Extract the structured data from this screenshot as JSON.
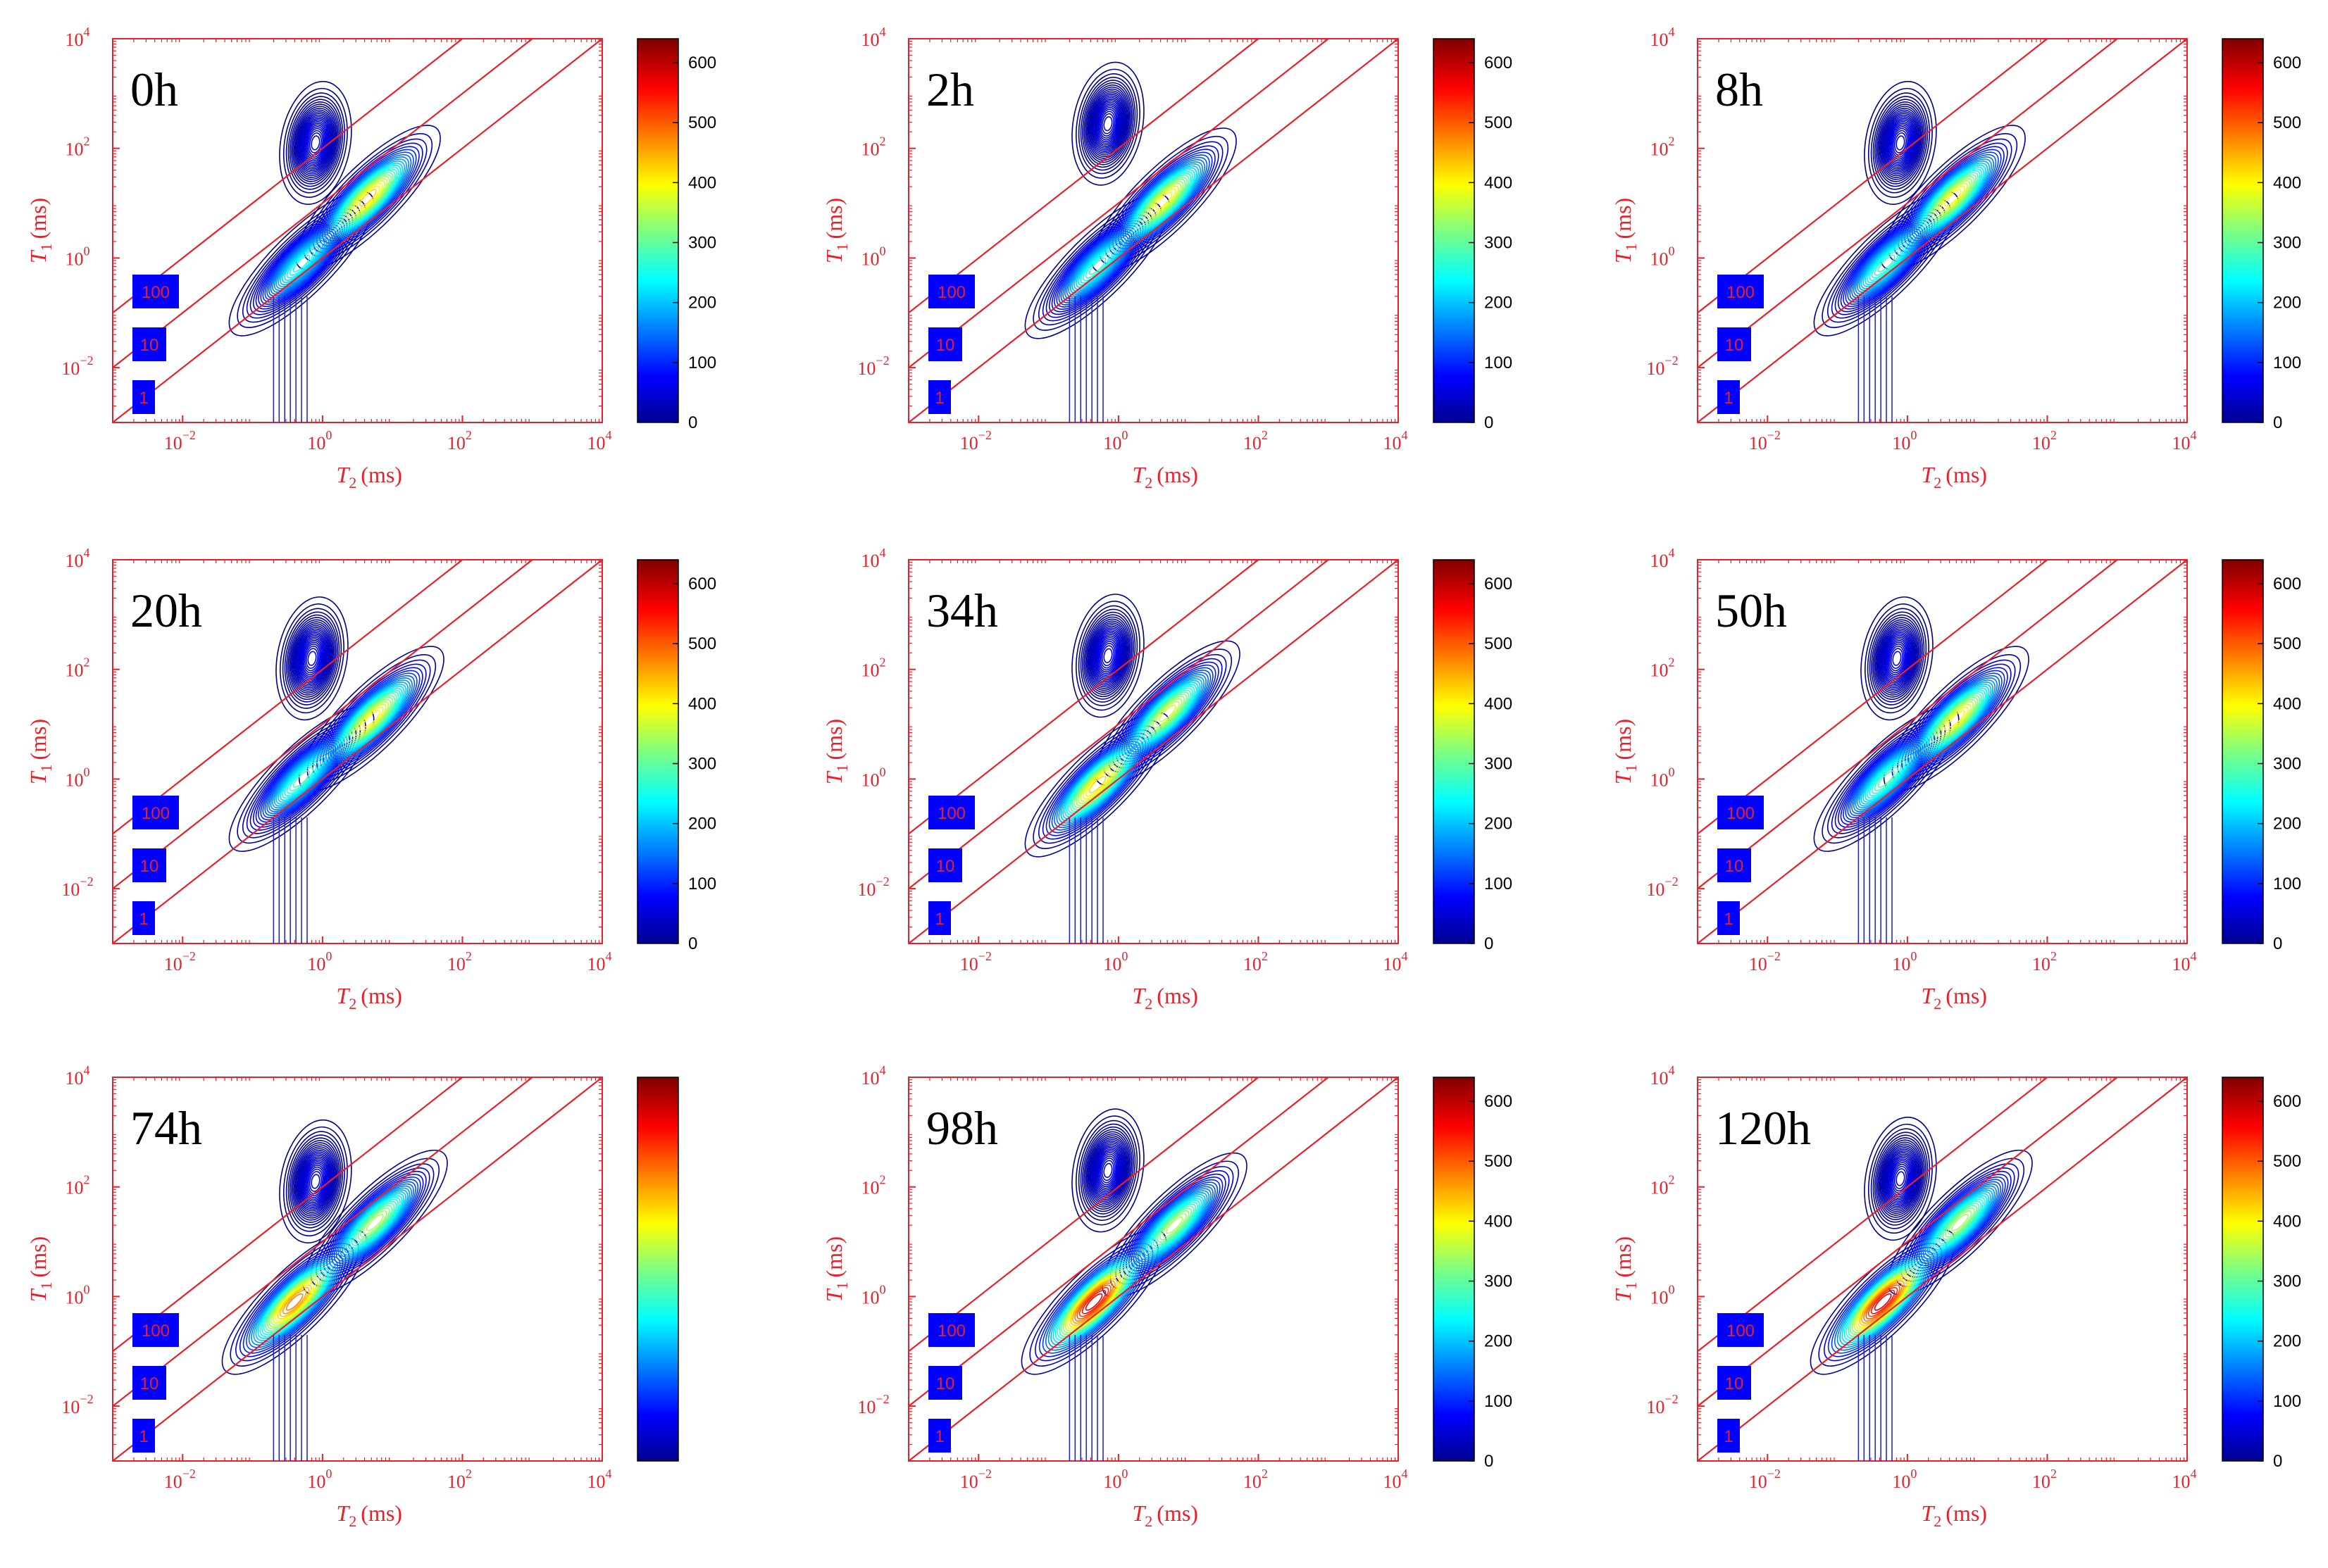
{
  "chart_data": {
    "type": "contour",
    "description_axes": {
      "xlabel": "T",
      "xlabel_sub": "2",
      "xlabel_unit": "(ms)",
      "ylabel": "T",
      "ylabel_sub": "1",
      "ylabel_unit": "(ms)",
      "xlim_log10": [
        -3,
        4
      ],
      "ylim_log10": [
        -3,
        4
      ],
      "x_ticks": [
        {
          "base": "10",
          "exp": "−2",
          "v": -2
        },
        {
          "base": "10",
          "exp": "0",
          "v": 0
        },
        {
          "base": "10",
          "exp": "2",
          "v": 2
        },
        {
          "base": "10",
          "exp": "4",
          "v": 4
        }
      ],
      "y_ticks": [
        {
          "base": "10",
          "exp": "−2",
          "v": -2
        },
        {
          "base": "10",
          "exp": "0",
          "v": 0
        },
        {
          "base": "10",
          "exp": "2",
          "v": 2
        },
        {
          "base": "10",
          "exp": "4",
          "v": 4
        }
      ],
      "ratio_lines": [
        {
          "label": "100",
          "ratio": 100
        },
        {
          "label": "10",
          "ratio": 10
        },
        {
          "label": "1",
          "ratio": 1
        }
      ],
      "colorbar_range": [
        0,
        640
      ],
      "colorbar_ticks": [
        "0",
        "100",
        "200",
        "300",
        "400",
        "500",
        "600"
      ]
    },
    "colors": {
      "axis": "#e8202a",
      "ratio_box": "#0000ff",
      "contour_low": "#2020c0"
    },
    "panels": [
      {
        "label": "0h",
        "peaks": [
          {
            "t2": -0.3,
            "t1": -0.1,
            "amp": 260
          },
          {
            "t2": 0.65,
            "t1": 1.1,
            "amp": 440
          },
          {
            "t2": -0.1,
            "t1": 2.1,
            "amp": 80
          }
        ],
        "show_cb_ticks": true
      },
      {
        "label": "2h",
        "peaks": [
          {
            "t2": -0.3,
            "t1": -0.15,
            "amp": 280
          },
          {
            "t2": 0.65,
            "t1": 1.05,
            "amp": 420
          },
          {
            "t2": -0.15,
            "t1": 2.45,
            "amp": 70
          }
        ],
        "show_cb_ticks": true
      },
      {
        "label": "8h",
        "peaks": [
          {
            "t2": -0.3,
            "t1": -0.1,
            "amp": 290
          },
          {
            "t2": 0.65,
            "t1": 1.1,
            "amp": 420
          },
          {
            "t2": -0.1,
            "t1": 2.1,
            "amp": 80
          }
        ],
        "show_cb_ticks": true
      },
      {
        "label": "20h",
        "peaks": [
          {
            "t2": -0.3,
            "t1": 0.0,
            "amp": 290
          },
          {
            "t2": 0.7,
            "t1": 1.1,
            "amp": 420
          },
          {
            "t2": -0.15,
            "t1": 2.2,
            "amp": 80
          }
        ],
        "show_cb_ticks": true
      },
      {
        "label": "34h",
        "peaks": [
          {
            "t2": -0.3,
            "t1": -0.1,
            "amp": 440
          },
          {
            "t2": 0.7,
            "t1": 1.2,
            "amp": 390
          },
          {
            "t2": -0.15,
            "t1": 2.25,
            "amp": 80
          }
        ],
        "show_cb_ticks": true
      },
      {
        "label": "50h",
        "peaks": [
          {
            "t2": -0.3,
            "t1": 0.0,
            "amp": 300
          },
          {
            "t2": 0.7,
            "t1": 1.1,
            "amp": 420
          },
          {
            "t2": -0.15,
            "t1": 2.2,
            "amp": 80
          }
        ],
        "show_cb_ticks": true
      },
      {
        "label": "74h",
        "peaks": [
          {
            "t2": -0.4,
            "t1": -0.1,
            "amp": 500
          },
          {
            "t2": 0.75,
            "t1": 1.35,
            "amp": 360
          },
          {
            "t2": -0.1,
            "t1": 2.1,
            "amp": 80
          }
        ],
        "show_cb_ticks": false
      },
      {
        "label": "98h",
        "peaks": [
          {
            "t2": -0.35,
            "t1": -0.1,
            "amp": 600
          },
          {
            "t2": 0.8,
            "t1": 1.3,
            "amp": 360
          },
          {
            "t2": -0.15,
            "t1": 2.3,
            "amp": 75
          }
        ],
        "show_cb_ticks": true
      },
      {
        "label": "120h",
        "peaks": [
          {
            "t2": -0.35,
            "t1": -0.1,
            "amp": 600
          },
          {
            "t2": 0.75,
            "t1": 1.35,
            "amp": 360
          },
          {
            "t2": -0.1,
            "t1": 2.15,
            "amp": 75
          }
        ],
        "show_cb_ticks": true
      }
    ]
  }
}
